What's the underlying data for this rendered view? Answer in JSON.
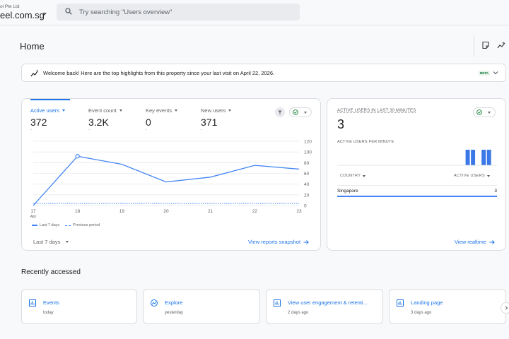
{
  "account": {
    "org": "ol Pte Ltd",
    "property": "eel.com.sg"
  },
  "search": {
    "placeholder": "Try searching \"Users overview\""
  },
  "page": {
    "title": "Home"
  },
  "welcome": {
    "text": "Welcome back! Here are the top highlights from this property since your last visit on April 22, 2026.",
    "badge": "BETA"
  },
  "metrics": [
    {
      "label": "Active users",
      "value": "372",
      "sub": "-"
    },
    {
      "label": "Event count",
      "value": "3.2K",
      "sub": "-"
    },
    {
      "label": "Key events",
      "value": "0",
      "sub": "-"
    },
    {
      "label": "New users",
      "value": "371",
      "sub": "-"
    }
  ],
  "chart_data": {
    "type": "line",
    "x": [
      "17",
      "18",
      "19",
      "20",
      "21",
      "22",
      "23"
    ],
    "x_month_label": "Apr",
    "series": [
      {
        "name": "Last 7 days",
        "values": [
          0,
          92,
          77,
          44,
          53,
          75,
          68
        ]
      },
      {
        "name": "Previous period",
        "values": [
          4,
          4,
          4,
          4,
          4,
          4,
          4
        ]
      }
    ],
    "yticks": [
      0,
      20,
      40,
      60,
      80,
      100,
      120
    ],
    "ylim": [
      0,
      120
    ],
    "grid": true,
    "legend_position": "bottom-left"
  },
  "main_card": {
    "range_label": "Last 7 days",
    "link": "View reports snapshot"
  },
  "realtime": {
    "title": "ACTIVE USERS IN LAST 30 MINUTES",
    "count": "3",
    "subtitle": "ACTIVE USERS PER MINUTE",
    "per_minute": [
      0,
      0,
      0,
      0,
      0,
      0,
      0,
      0,
      0,
      0,
      0,
      0,
      0,
      0,
      0,
      0,
      0,
      0,
      0,
      0,
      0,
      0,
      0,
      0,
      1,
      1,
      0,
      1,
      1,
      0
    ],
    "col_country": "COUNTRY",
    "col_users": "ACTIVE USERS",
    "rows": [
      {
        "country": "Singapore",
        "users": "3"
      }
    ],
    "link": "View realtime"
  },
  "recent": {
    "title": "Recently accessed",
    "items": [
      {
        "label": "Events",
        "time": "today",
        "icon": "bar-chart-icon"
      },
      {
        "label": "Explore",
        "time": "yesterday",
        "icon": "explore-icon"
      },
      {
        "label": "View user engagement & retenti...",
        "time": "2 days ago",
        "icon": "bar-chart-icon"
      },
      {
        "label": "Landing page",
        "time": "3 days ago",
        "icon": "bar-chart-icon"
      }
    ]
  },
  "colors": {
    "accent": "#1a73e8",
    "line": "#4285f4"
  }
}
